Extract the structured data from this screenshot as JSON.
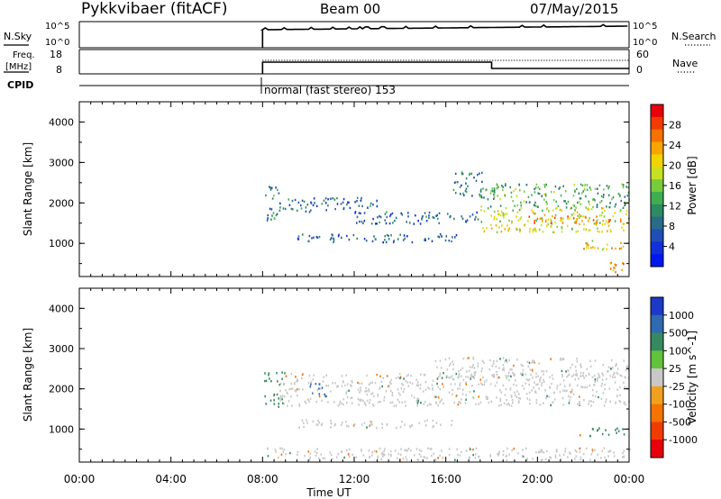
{
  "header": {
    "radar": "Pykkvibaer (fitACF)",
    "beam": "Beam 00",
    "date": "07/May/2015"
  },
  "top_panels": {
    "nsky_label": "N.Sky",
    "nsky_ticks": [
      "10^5",
      "10^0"
    ],
    "nsearch_label": "N.Search",
    "nsearch_ticks": [
      "10^5",
      "10^0"
    ],
    "freq_label": [
      "Freq.",
      "[MHz]"
    ],
    "freq_ticks": [
      "18",
      "8"
    ],
    "nave_label": "Nave",
    "nave_ticks": [
      "60",
      "0"
    ],
    "cpid_label": "CPID",
    "cpid_text": "normal (fast stereo) 153"
  },
  "power_colorbar": {
    "title": "Power [dB]",
    "ticks": [
      "28",
      "24",
      "20",
      "16",
      "12",
      "8",
      "4"
    ],
    "colors": [
      "#e8000b",
      "#f23b00",
      "#f57200",
      "#f7a500",
      "#f2d400",
      "#c8e023",
      "#78cc3c",
      "#3fae51",
      "#2d8a63",
      "#2a6b87",
      "#1f4fb4",
      "#1030d8",
      "#0018f0"
    ]
  },
  "velocity_colorbar": {
    "title": "Velocity [m s^-1]",
    "ticks": [
      "1000",
      "500",
      "100",
      "25",
      "-25",
      "-100",
      "-500",
      "-1000"
    ],
    "colors": [
      "#1d39c8",
      "#2f69b0",
      "#358a60",
      "#63c23b",
      "#c8c8c8",
      "#f0a020",
      "#f57400",
      "#f03c00",
      "#e8000b"
    ]
  },
  "chart_data": [
    {
      "type": "heatmap",
      "panel": "power",
      "ylabel": "Slant Range [km]",
      "yticks": [
        "4000",
        "3000",
        "2000",
        "1000"
      ],
      "ylim": [
        180,
        4500
      ],
      "xlim": [
        0,
        24
      ],
      "x_ticks": [
        "00:00",
        "04:00",
        "08:00",
        "12:00",
        "16:00",
        "20:00",
        "00:00"
      ],
      "xlabel": "Time UT",
      "data_start_hour": 8.0,
      "echo_bands": [
        {
          "t0": 8.0,
          "t1": 8.7,
          "r0": 2100,
          "r1": 2450,
          "power_db": 10
        },
        {
          "t0": 8.0,
          "t1": 8.7,
          "r0": 1550,
          "r1": 1900,
          "power_db": 9
        },
        {
          "t0": 8.7,
          "t1": 13.0,
          "r0": 1800,
          "r1": 2150,
          "power_db": 7
        },
        {
          "t0": 9.5,
          "t1": 16.5,
          "r0": 1050,
          "r1": 1250,
          "power_db": 6
        },
        {
          "t0": 12.0,
          "t1": 17.5,
          "r0": 1500,
          "r1": 1800,
          "power_db": 7
        },
        {
          "t0": 16.3,
          "t1": 17.6,
          "r0": 2200,
          "r1": 2800,
          "power_db": 8
        },
        {
          "t0": 17.5,
          "t1": 24.0,
          "r0": 1300,
          "r1": 1900,
          "power_db": 18
        },
        {
          "t0": 17.5,
          "t1": 24.0,
          "r0": 1900,
          "r1": 2500,
          "power_db": 12
        },
        {
          "t0": 19.5,
          "t1": 24.0,
          "r0": 1500,
          "r1": 1700,
          "power_db": 24
        },
        {
          "t0": 21.8,
          "t1": 23.8,
          "r0": 850,
          "r1": 1100,
          "power_db": 20
        },
        {
          "t0": 23.0,
          "t1": 24.0,
          "r0": 300,
          "r1": 550,
          "power_db": 24
        }
      ]
    },
    {
      "type": "heatmap",
      "panel": "velocity",
      "ylabel": "Slant Range [km]",
      "yticks": [
        "4000",
        "3000",
        "2000",
        "1000"
      ],
      "ylim": [
        180,
        4500
      ],
      "xlim": [
        0,
        24
      ],
      "x_ticks": [
        "00:00",
        "04:00",
        "08:00",
        "12:00",
        "16:00",
        "20:00",
        "00:00"
      ],
      "xlabel": "Time UT",
      "data_start_hour": 8.0,
      "echo_bands": [
        {
          "t0": 8.0,
          "t1": 9.0,
          "r0": 2100,
          "r1": 2450,
          "velocity": 150
        },
        {
          "t0": 8.0,
          "t1": 9.0,
          "r0": 1550,
          "r1": 1900,
          "velocity": 120
        },
        {
          "t0": 10.0,
          "t1": 10.8,
          "r0": 1800,
          "r1": 2150,
          "velocity": 700
        },
        {
          "t0": 8.7,
          "t1": 24.0,
          "r0": 1600,
          "r1": 2400,
          "velocity": 0
        },
        {
          "t0": 15.5,
          "t1": 24.0,
          "r0": 2300,
          "r1": 2800,
          "velocity": 0
        },
        {
          "t0": 9.5,
          "t1": 16.5,
          "r0": 1050,
          "r1": 1250,
          "velocity": 0
        },
        {
          "t0": 21.8,
          "t1": 23.8,
          "r0": 850,
          "r1": 1100,
          "velocity": 200
        },
        {
          "t0": 8.0,
          "t1": 24.0,
          "r0": 250,
          "r1": 550,
          "velocity": 0
        }
      ]
    }
  ]
}
